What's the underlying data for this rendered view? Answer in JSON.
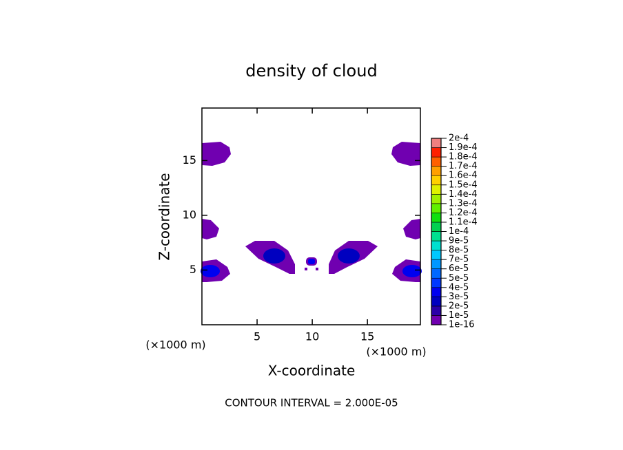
{
  "chart_data": {
    "type": "contour",
    "title": "density of cloud",
    "x_label": "X-coordinate",
    "y_label": "Z-coordinate",
    "x_unit": "(×1000 m)",
    "y_unit": "(×1000 m)",
    "note": "CONTOUR INTERVAL = 2.000E-05",
    "xlim": [
      0,
      19.8
    ],
    "ylim": [
      0,
      19.8
    ],
    "xticks": [
      5,
      10,
      15
    ],
    "yticks": [
      5,
      10,
      15
    ],
    "colorbar": {
      "levels": [
        {
          "value": 1e-16,
          "label": "1e-16"
        },
        {
          "value": 1e-05,
          "label": "1e-5"
        },
        {
          "value": 2e-05,
          "label": "2e-5"
        },
        {
          "value": 3e-05,
          "label": "3e-5"
        },
        {
          "value": 4e-05,
          "label": "4e-5"
        },
        {
          "value": 5e-05,
          "label": "5e-5"
        },
        {
          "value": 6e-05,
          "label": "6e-5"
        },
        {
          "value": 7e-05,
          "label": "7e-5"
        },
        {
          "value": 8e-05,
          "label": "8e-5"
        },
        {
          "value": 9e-05,
          "label": "9e-5"
        },
        {
          "value": 0.0001,
          "label": "1e-4"
        },
        {
          "value": 0.00011,
          "label": "1.1e-4"
        },
        {
          "value": 0.00012,
          "label": "1.2e-4"
        },
        {
          "value": 0.00013,
          "label": "1.3e-4"
        },
        {
          "value": 0.00014,
          "label": "1.4e-4"
        },
        {
          "value": 0.00015,
          "label": "1.5e-4"
        },
        {
          "value": 0.00016,
          "label": "1.6e-4"
        },
        {
          "value": 0.00017,
          "label": "1.7e-4"
        },
        {
          "value": 0.00018,
          "label": "1.8e-4"
        },
        {
          "value": 0.00019,
          "label": "1.9e-4"
        },
        {
          "value": 0.0002,
          "label": "2e-4"
        }
      ],
      "colors": [
        "#7000b0",
        "#2a00a8",
        "#0000c0",
        "#0000f0",
        "#0038ff",
        "#0068ff",
        "#0098ff",
        "#00c8ff",
        "#00e0d0",
        "#00e090",
        "#00d050",
        "#10e010",
        "#60f000",
        "#a0f000",
        "#e0f000",
        "#ffd000",
        "#ffa000",
        "#ff6000",
        "#ff2000",
        "#f08080"
      ]
    }
  }
}
